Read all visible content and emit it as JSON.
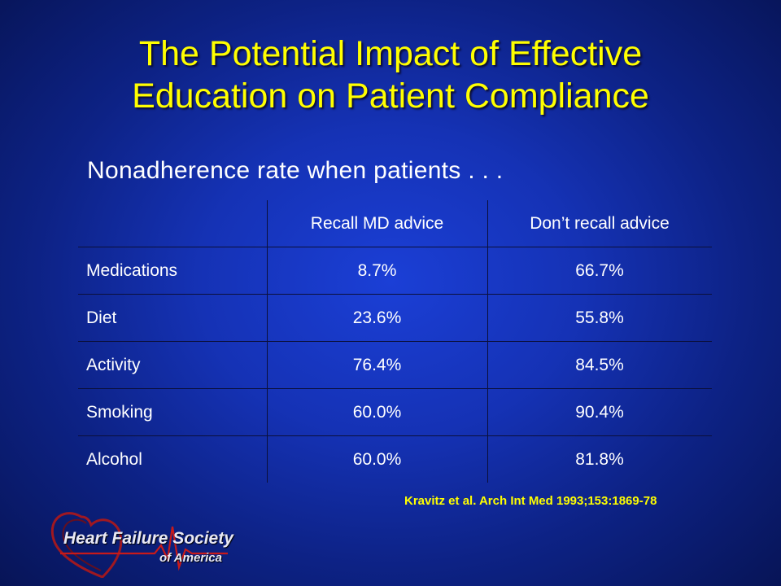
{
  "slide": {
    "title_line1": "The Potential Impact of Effective",
    "title_line2": "Education on Patient Compliance",
    "subtitle": "Nonadherence rate when patients . . .",
    "citation": "Kravitz et al. Arch Int Med 1993;153:1869-78"
  },
  "table": {
    "headers": [
      "",
      "Recall MD advice",
      "Don’t recall advice"
    ],
    "rows": [
      [
        "Medications",
        "8.7%",
        "66.7%"
      ],
      [
        "Diet",
        "23.6%",
        "55.8%"
      ],
      [
        "Activity",
        "76.4%",
        "84.5%"
      ],
      [
        "Smoking",
        "60.0%",
        "90.4%"
      ],
      [
        "Alcohol",
        "60.0%",
        "81.8%"
      ]
    ]
  },
  "logo": {
    "line1": "Heart Failure Society",
    "line2": "of America",
    "icon": "heart-ecg-icon"
  },
  "colors": {
    "title": "#ffff00",
    "citation": "#ffff00",
    "text": "#ffffff",
    "background": "#1532b5"
  }
}
